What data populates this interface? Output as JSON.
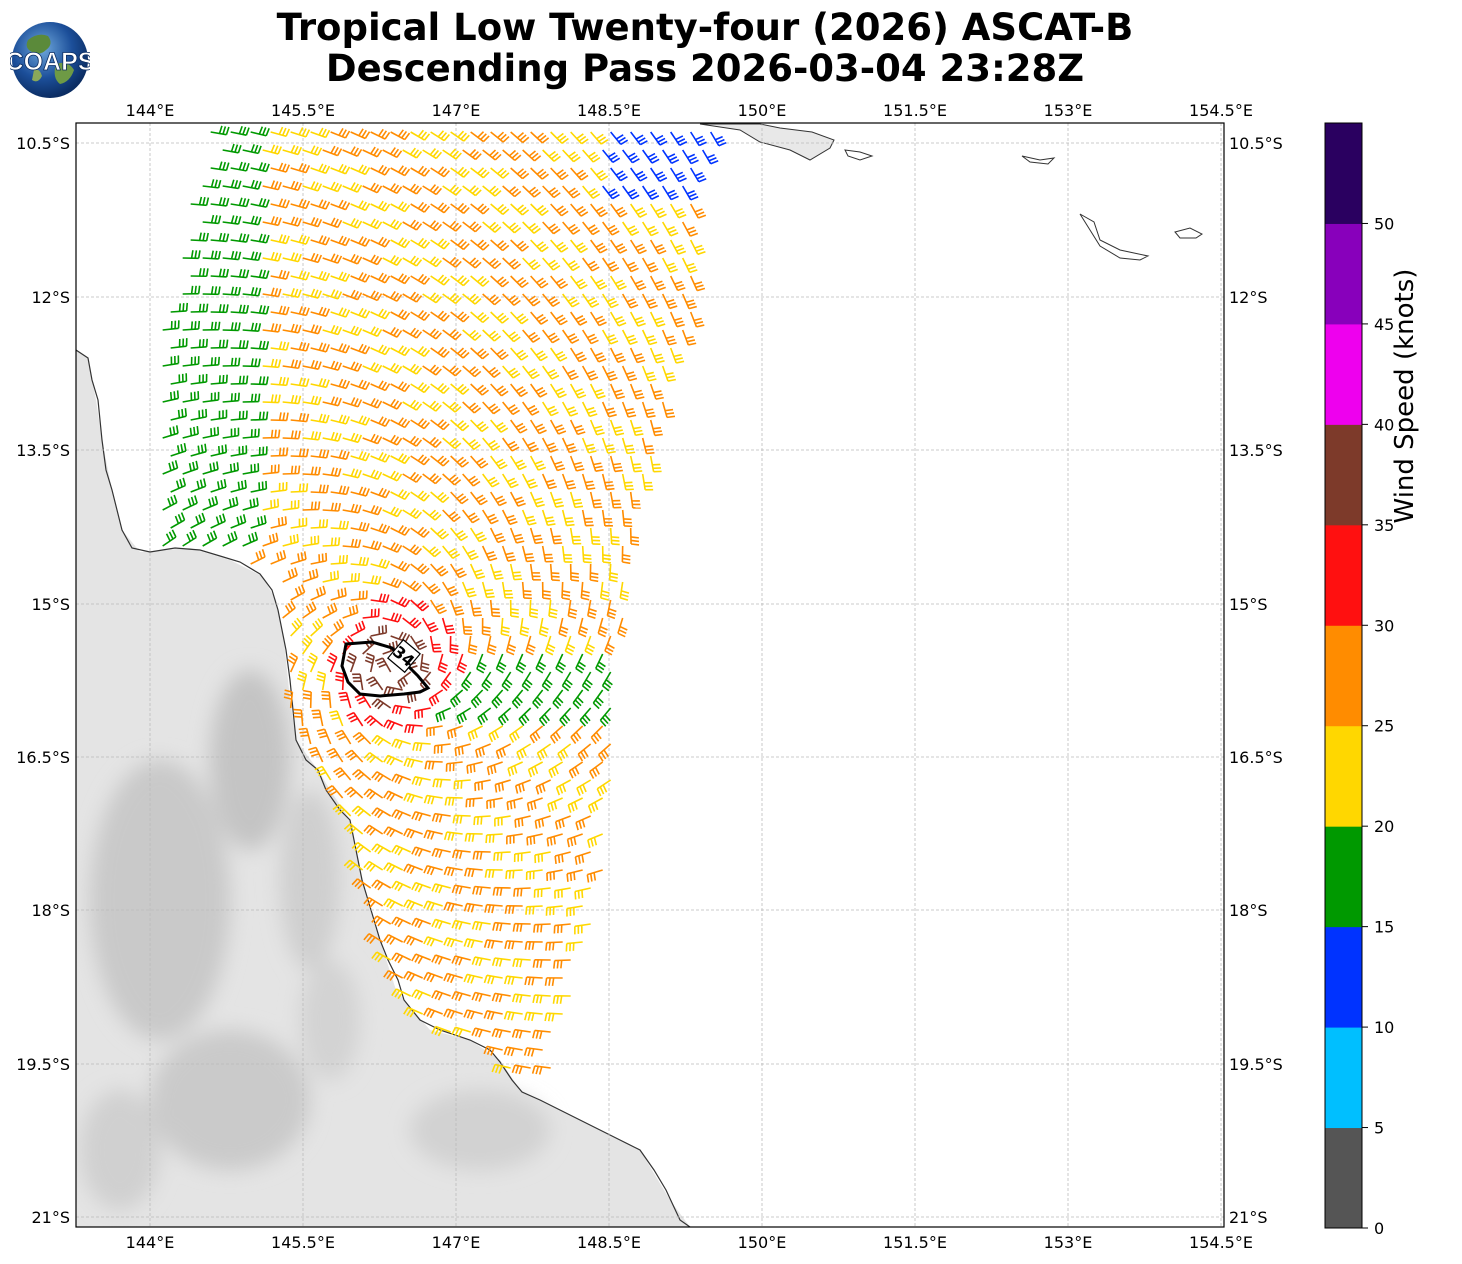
{
  "title": {
    "line1": "Tropical Low Twenty-four (2026) ASCAT-B",
    "line2": "Descending Pass 2026-03-04 23:28Z"
  },
  "logo": {
    "text": "COAPS"
  },
  "map": {
    "lon_ticks": [
      "144°E",
      "145.5°E",
      "147°E",
      "148.5°E",
      "150°E",
      "151.5°E",
      "153°E",
      "154.5°E"
    ],
    "lat_ticks": [
      "10.5°S",
      "12°S",
      "13.5°S",
      "15°S",
      "16.5°S",
      "18°S",
      "19.5°S",
      "21°S"
    ],
    "wind_34kt_contour_label": "34"
  },
  "colorbar": {
    "label": "Wind Speed (knots)",
    "ticks": [
      "0",
      "5",
      "10",
      "15",
      "20",
      "25",
      "30",
      "35",
      "40",
      "45",
      "50"
    ],
    "colors": [
      "#555555",
      "#00bfff",
      "#0033ff",
      "#009900",
      "#ffd700",
      "#ff8c00",
      "#ff1010",
      "#7d3a2a",
      "#ee00ee",
      "#8800bb",
      "#2a0060"
    ]
  },
  "colors": {
    "land_shade": "#dcdcdc",
    "coastline": "#333333",
    "grid": "#bbbbbb"
  }
}
